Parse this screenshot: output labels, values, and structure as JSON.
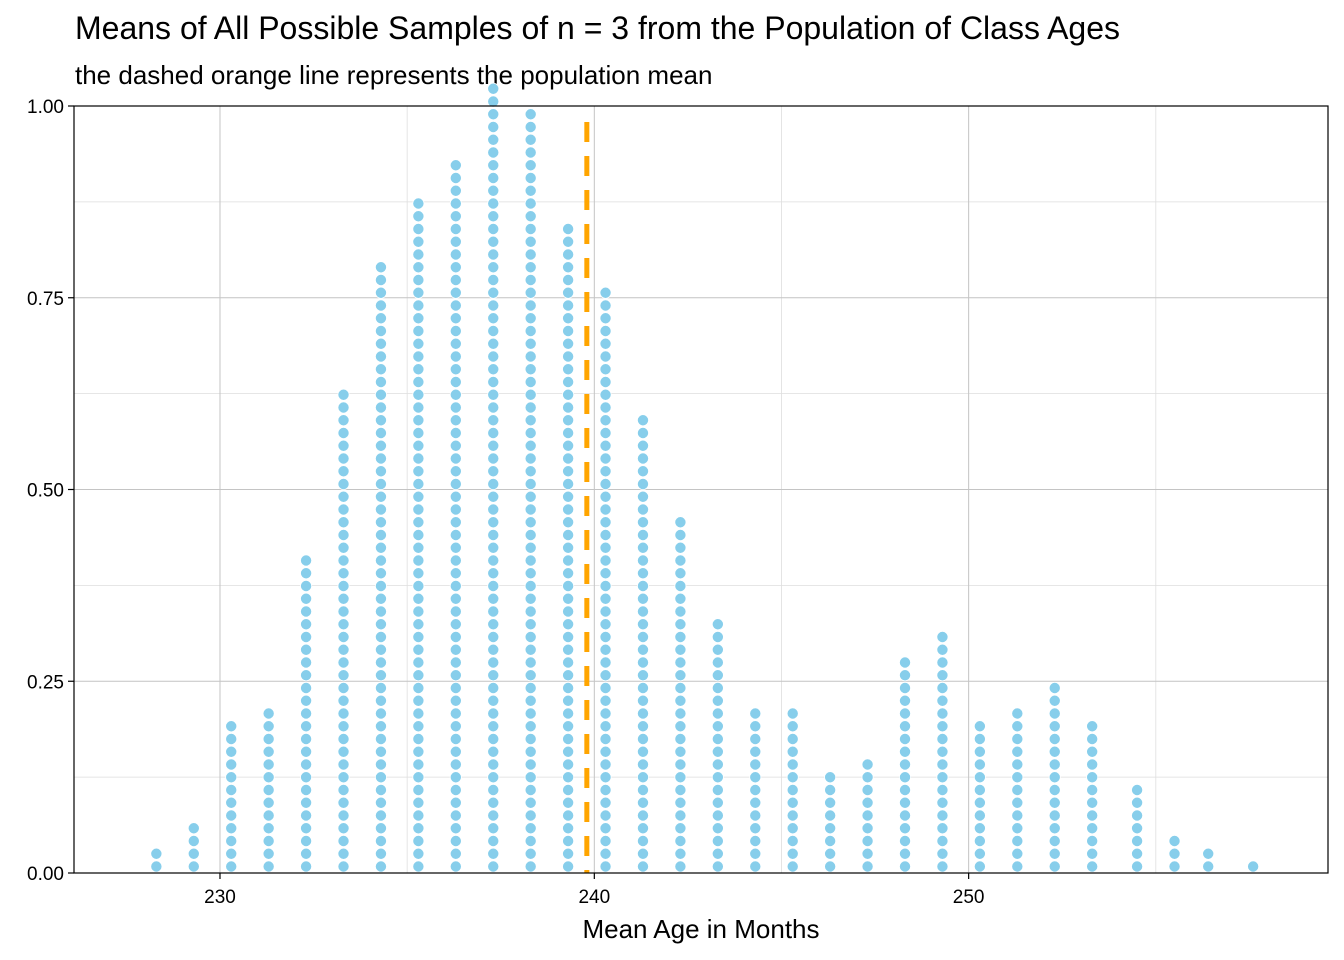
{
  "chart_data": {
    "type": "dotplot",
    "title": "Means of All Possible Samples of n = 3 from the Population of Class Ages",
    "subtitle": "the dashed orange line represents the population mean",
    "xlabel": "Mean Age in Months",
    "ylabel": "",
    "xlim": [
      226.1,
      259.6
    ],
    "ylim": [
      0,
      1
    ],
    "x_ticks": [
      230,
      240,
      250
    ],
    "x_tick_labels": [
      "230",
      "240",
      "250"
    ],
    "y_ticks": [
      0,
      0.25,
      0.5,
      0.75,
      1
    ],
    "y_tick_labels": [
      "0.00",
      "0.25",
      "0.50",
      "0.75",
      "1.00"
    ],
    "grid": true,
    "dot_color": "#87CEEB",
    "population_mean": 239.8,
    "mean_line_color": "#FFA500",
    "bins": [
      {
        "x": 228.3,
        "count": 2
      },
      {
        "x": 229.3,
        "count": 4
      },
      {
        "x": 230.3,
        "count": 12
      },
      {
        "x": 231.3,
        "count": 13
      },
      {
        "x": 232.3,
        "count": 25
      },
      {
        "x": 233.3,
        "count": 38
      },
      {
        "x": 234.3,
        "count": 48
      },
      {
        "x": 235.3,
        "count": 53
      },
      {
        "x": 236.3,
        "count": 56
      },
      {
        "x": 237.3,
        "count": 62
      },
      {
        "x": 238.3,
        "count": 60
      },
      {
        "x": 239.3,
        "count": 51
      },
      {
        "x": 240.3,
        "count": 46
      },
      {
        "x": 241.3,
        "count": 36
      },
      {
        "x": 242.3,
        "count": 28
      },
      {
        "x": 243.3,
        "count": 20
      },
      {
        "x": 244.3,
        "count": 13
      },
      {
        "x": 245.3,
        "count": 13
      },
      {
        "x": 246.3,
        "count": 8
      },
      {
        "x": 247.3,
        "count": 9
      },
      {
        "x": 248.3,
        "count": 17
      },
      {
        "x": 249.3,
        "count": 19
      },
      {
        "x": 250.3,
        "count": 12
      },
      {
        "x": 251.3,
        "count": 13
      },
      {
        "x": 252.3,
        "count": 15
      },
      {
        "x": 253.3,
        "count": 12
      },
      {
        "x": 254.5,
        "count": 7
      },
      {
        "x": 255.5,
        "count": 3
      },
      {
        "x": 256.4,
        "count": 2
      },
      {
        "x": 257.6,
        "count": 1
      }
    ]
  }
}
